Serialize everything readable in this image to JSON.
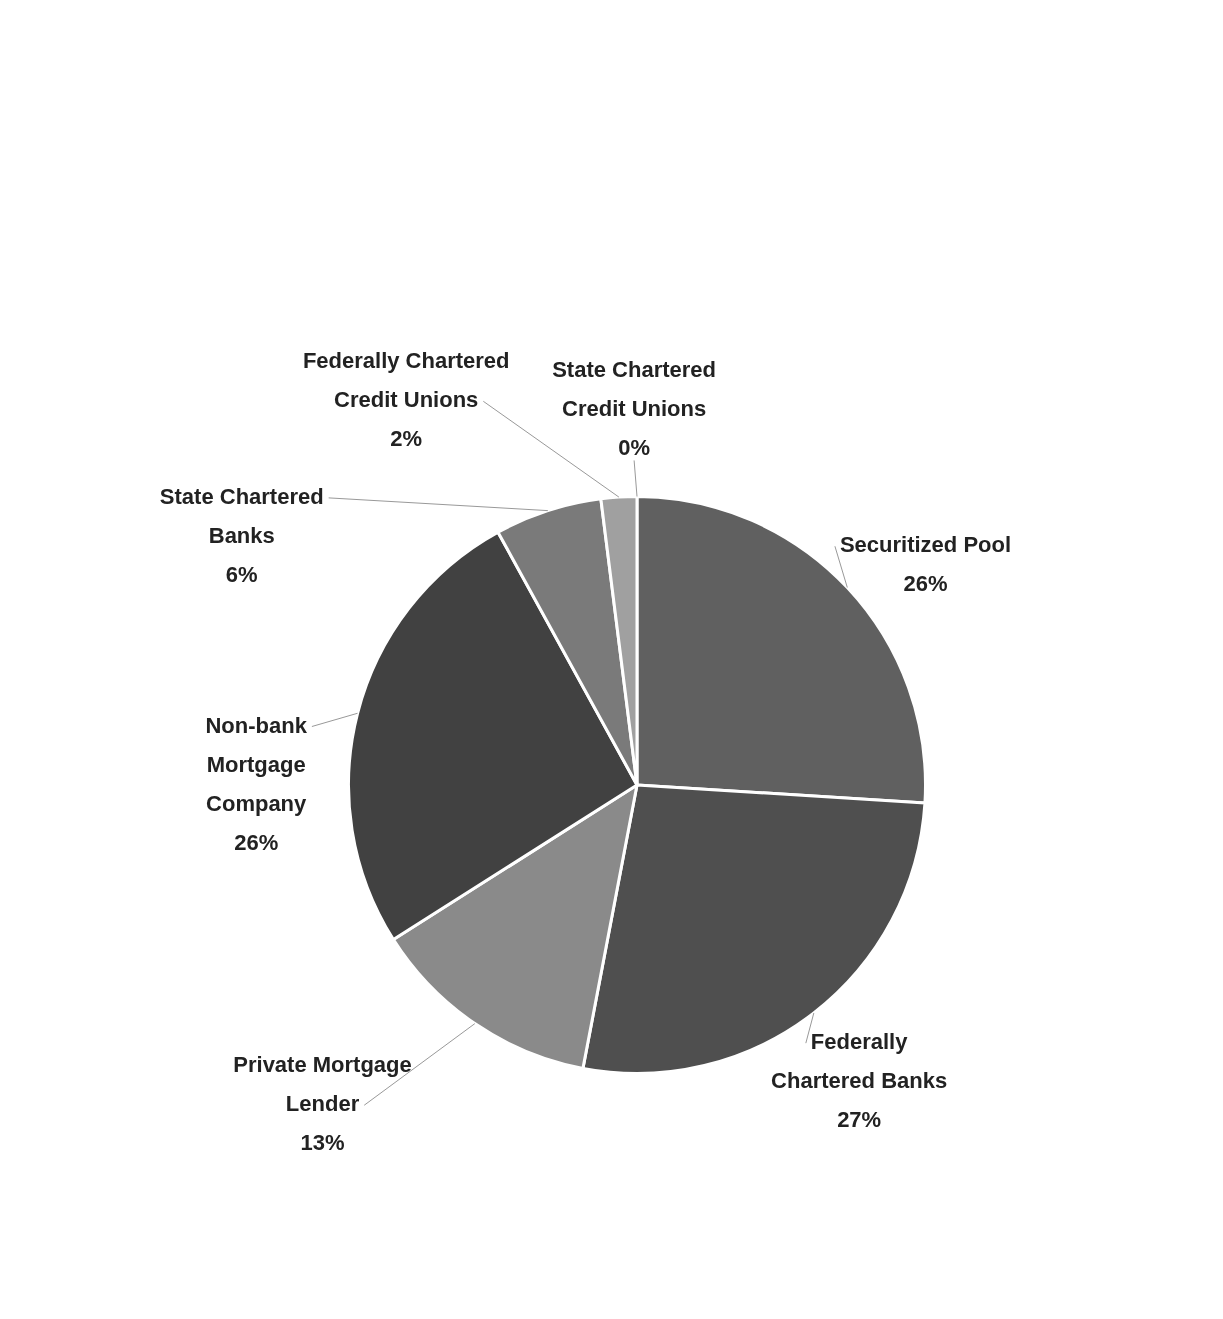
{
  "chart_data": {
    "type": "pie",
    "categories": [
      "Securitized Pool",
      "Federally Chartered Banks",
      "Private Mortgage Lender",
      "Non-bank Mortgage Company",
      "State Chartered Banks",
      "Federally Chartered Credit Unions",
      "State Chartered Credit Unions"
    ],
    "values": [
      26,
      27,
      13,
      26,
      6,
      2,
      0
    ],
    "value_labels": [
      "26%",
      "27%",
      "13%",
      "26%",
      "6%",
      "2%",
      "0%"
    ],
    "colors": [
      "#606060",
      "#4f4f4f",
      "#8a8a8a",
      "#414141",
      "#7a7a7a",
      "#a0a0a0",
      "#c8c8c8"
    ],
    "legend": false
  }
}
